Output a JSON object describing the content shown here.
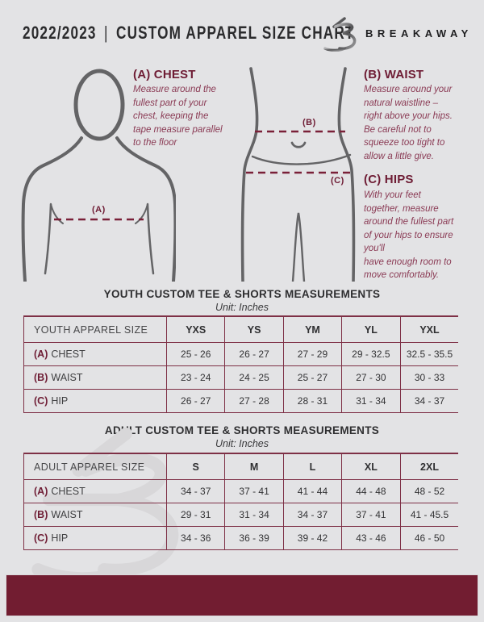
{
  "header": {
    "season": "2022/2023",
    "separator": "|",
    "title": "CUSTOM APPAREL SIZE CHART",
    "brand": "BREAKAWAY"
  },
  "icons": {
    "logo": "breakaway-b-monogram",
    "watermark": "breakaway-b-monogram-watermark"
  },
  "colors": {
    "background": "#e3e3e5",
    "maroon_heading": "#6e1c34",
    "maroon_italic_text": "#8a3a54",
    "table_line": "#7e3046",
    "bottom_bar": "#721d31",
    "figure_outline": "#646466",
    "dark_text": "#2f2f31"
  },
  "measurement_guide": {
    "chest": {
      "label": "(A) CHEST",
      "description": "Measure around the\nfullest part of your\nchest, keeping the\ntape measure parallel\nto the floor"
    },
    "waist": {
      "label": "(B) WAIST",
      "description": "Measure around your\nnatural waistline –\nright above your hips.\nBe careful not to\nsqueeze too tight to\nallow a little give."
    },
    "hips": {
      "label": "(C) HIPS",
      "description": "With your feet\ntogether, measure\naround the fullest part\nof your hips to ensure\nyou'll\nhave enough room to\nmove comfortably."
    },
    "figure_labels": {
      "chest": "(A)",
      "waist": "(B)",
      "hips": "(C)"
    }
  },
  "tables": [
    {
      "id": "youth",
      "title": "YOUTH CUSTOM TEE & SHORTS MEASUREMENTS",
      "unit": "Unit: Inches",
      "header": [
        "YOUTH APPAREL SIZE",
        "YXS",
        "YS",
        "YM",
        "YL",
        "YXL"
      ],
      "rows": [
        {
          "label_prefix": "(A)",
          "label": "CHEST",
          "values": [
            "25 - 26",
            "26 - 27",
            "27 - 29",
            "29 - 32.5",
            "32.5 - 35.5"
          ]
        },
        {
          "label_prefix": "(B)",
          "label": "WAIST",
          "values": [
            "23 - 24",
            "24 - 25",
            "25 - 27",
            "27 - 30",
            "30 - 33"
          ]
        },
        {
          "label_prefix": "(C)",
          "label": "HIP",
          "values": [
            "26 - 27",
            "27 - 28",
            "28 - 31",
            "31 - 34",
            "34 - 37"
          ]
        }
      ]
    },
    {
      "id": "adult",
      "title": "ADULT CUSTOM TEE & SHORTS MEASUREMENTS",
      "unit": "Unit: Inches",
      "header": [
        "ADULT APPAREL SIZE",
        "S",
        "M",
        "L",
        "XL",
        "2XL"
      ],
      "rows": [
        {
          "label_prefix": "(A)",
          "label": "CHEST",
          "values": [
            "34 - 37",
            "37 - 41",
            "41 - 44",
            "44 - 48",
            "48 - 52"
          ]
        },
        {
          "label_prefix": "(B)",
          "label": "WAIST",
          "values": [
            "29 - 31",
            "31 - 34",
            "34 - 37",
            "37 - 41",
            "41 - 45.5"
          ]
        },
        {
          "label_prefix": "(C)",
          "label": "HIP",
          "values": [
            "34 - 36",
            "36 - 39",
            "39 - 42",
            "43 - 46",
            "46 - 50"
          ]
        }
      ]
    }
  ]
}
